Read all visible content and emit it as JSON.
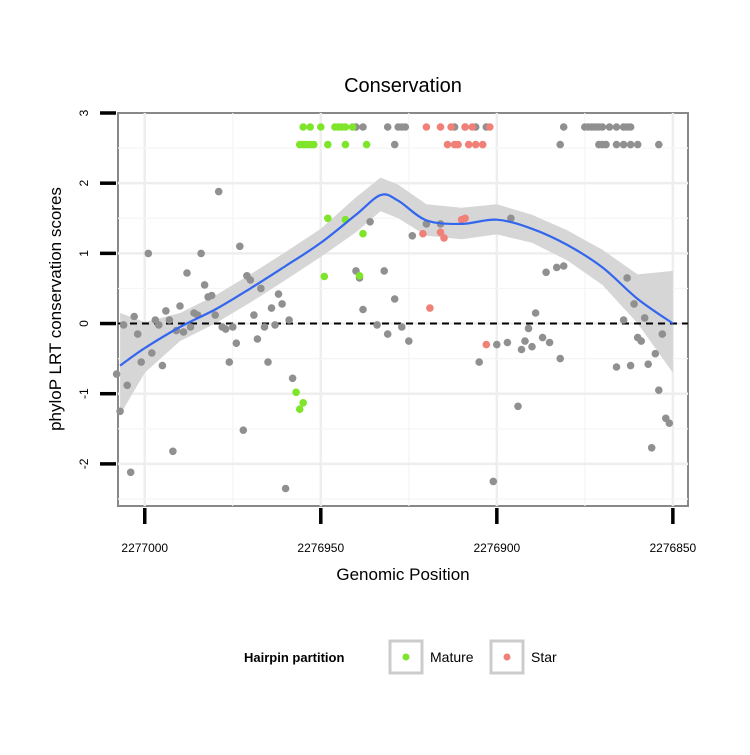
{
  "chart_data": {
    "type": "scatter",
    "title": "Conservation",
    "xlabel": "Genomic Position",
    "ylabel": "phyloP LRT conservation scores",
    "xlim": [
      2277007.6,
      2276845.7
    ],
    "ylim": [
      -2.6,
      3.0
    ],
    "x_ticks": [
      2277000,
      2276950,
      2276900,
      2276850
    ],
    "x_tick_labels": [
      "2277000",
      "2276950",
      "2276900",
      "2276850"
    ],
    "y_ticks": [
      -2,
      -1,
      0,
      1,
      2,
      3
    ],
    "y_tick_labels": [
      "-2",
      "-1",
      "0",
      "1",
      "2",
      "3"
    ],
    "grid": true,
    "reference_line": {
      "y": 0,
      "style": "dashed"
    },
    "legend": {
      "title": "Hairpin partition",
      "position": "bottom",
      "entries": [
        {
          "label": "Mature",
          "color": "#7ee52a"
        },
        {
          "label": "Star",
          "color": "#f08078"
        }
      ]
    },
    "colors": {
      "other": "#909090",
      "mature": "#7ee52a",
      "star": "#f08078",
      "smooth_line": "#3366ee",
      "ribbon": "#d6d6d6"
    },
    "series": [
      {
        "name": "Other",
        "points": [
          [
            2277008,
            -0.72
          ],
          [
            2277007,
            -1.25
          ],
          [
            2277006,
            -0.02
          ],
          [
            2277005,
            -0.88
          ],
          [
            2277004,
            -2.12
          ],
          [
            2277003,
            0.1
          ],
          [
            2277002,
            -0.15
          ],
          [
            2277001,
            -0.55
          ],
          [
            2276999,
            1.0
          ],
          [
            2276998,
            -0.42
          ],
          [
            2276997,
            0.05
          ],
          [
            2276996,
            -0.02
          ],
          [
            2276995,
            -0.6
          ],
          [
            2276994,
            0.18
          ],
          [
            2276993,
            0.05
          ],
          [
            2276992,
            -1.82
          ],
          [
            2276991,
            -0.1
          ],
          [
            2276990,
            0.25
          ],
          [
            2276989,
            -0.12
          ],
          [
            2276988,
            0.72
          ],
          [
            2276987,
            -0.05
          ],
          [
            2276986,
            0.15
          ],
          [
            2276985,
            0.12
          ],
          [
            2276984,
            1.0
          ],
          [
            2276983,
            0.55
          ],
          [
            2276982,
            0.38
          ],
          [
            2276981,
            0.4
          ],
          [
            2276980,
            0.12
          ],
          [
            2276979,
            1.88
          ],
          [
            2276978,
            -0.05
          ],
          [
            2276977,
            -0.08
          ],
          [
            2276976,
            -0.55
          ],
          [
            2276975,
            -0.05
          ],
          [
            2276974,
            -0.28
          ],
          [
            2276973,
            1.1
          ],
          [
            2276972,
            -1.52
          ],
          [
            2276971,
            0.68
          ],
          [
            2276970,
            0.62
          ],
          [
            2276969,
            0.12
          ],
          [
            2276968,
            -0.22
          ],
          [
            2276967,
            0.5
          ],
          [
            2276966,
            -0.05
          ],
          [
            2276965,
            -0.55
          ],
          [
            2276964,
            0.22
          ],
          [
            2276963,
            -0.02
          ],
          [
            2276962,
            0.42
          ],
          [
            2276961,
            0.28
          ],
          [
            2276960,
            -2.35
          ],
          [
            2276959,
            0.05
          ],
          [
            2276958,
            -0.78
          ],
          [
            2276940,
            0.75
          ],
          [
            2276939,
            0.65
          ],
          [
            2276938,
            0.2
          ],
          [
            2276936,
            1.45
          ],
          [
            2276934,
            -0.02
          ],
          [
            2276932,
            0.75
          ],
          [
            2276931,
            -0.15
          ],
          [
            2276929,
            0.35
          ],
          [
            2276927,
            -0.05
          ],
          [
            2276925,
            -0.25
          ],
          [
            2276924,
            1.25
          ],
          [
            2276920,
            1.42
          ],
          [
            2276916,
            1.42
          ],
          [
            2276905,
            -0.55
          ],
          [
            2276901,
            -2.25
          ],
          [
            2276900,
            -0.3
          ],
          [
            2276897,
            -0.27
          ],
          [
            2276896,
            1.5
          ],
          [
            2276894,
            -1.18
          ],
          [
            2276893,
            -0.37
          ],
          [
            2276892,
            -0.25
          ],
          [
            2276891,
            -0.07
          ],
          [
            2276890,
            -0.33
          ],
          [
            2276889,
            0.15
          ],
          [
            2276887,
            -0.2
          ],
          [
            2276886,
            0.73
          ],
          [
            2276885,
            -0.27
          ],
          [
            2276883,
            0.8
          ],
          [
            2276882,
            -0.5
          ],
          [
            2276881,
            0.82
          ],
          [
            2276866,
            -0.62
          ],
          [
            2276864,
            0.05
          ],
          [
            2276863,
            0.65
          ],
          [
            2276862,
            -0.6
          ],
          [
            2276861,
            0.28
          ],
          [
            2276860,
            -0.2
          ],
          [
            2276859,
            -0.25
          ],
          [
            2276858,
            0.08
          ],
          [
            2276857,
            -0.58
          ],
          [
            2276856,
            -1.77
          ],
          [
            2276855,
            -0.43
          ],
          [
            2276854,
            -0.95
          ],
          [
            2276853,
            -0.15
          ],
          [
            2276852,
            -1.35
          ],
          [
            2276851,
            -1.42
          ],
          [
            2276940,
            2.8
          ],
          [
            2276938,
            2.8
          ],
          [
            2276931,
            2.8
          ],
          [
            2276929,
            2.55
          ],
          [
            2276928,
            2.8
          ],
          [
            2276927,
            2.8
          ],
          [
            2276926,
            2.8
          ],
          [
            2276912,
            2.8
          ],
          [
            2276909,
            2.8
          ],
          [
            2276906,
            2.8
          ],
          [
            2276903,
            2.8
          ],
          [
            2276881,
            2.8
          ],
          [
            2276875,
            2.8
          ],
          [
            2276874,
            2.8
          ],
          [
            2276873,
            2.8
          ],
          [
            2276872,
            2.8
          ],
          [
            2276871,
            2.8
          ],
          [
            2276870,
            2.8
          ],
          [
            2276868,
            2.8
          ],
          [
            2276866,
            2.8
          ],
          [
            2276864,
            2.8
          ],
          [
            2276863,
            2.8
          ],
          [
            2276862,
            2.8
          ],
          [
            2276882,
            2.55
          ],
          [
            2276871,
            2.55
          ],
          [
            2276870,
            2.55
          ],
          [
            2276869,
            2.55
          ],
          [
            2276866,
            2.55
          ],
          [
            2276864,
            2.55
          ],
          [
            2276862,
            2.55
          ],
          [
            2276860,
            2.55
          ],
          [
            2276854,
            2.55
          ]
        ]
      },
      {
        "name": "Mature",
        "points": [
          [
            2276957,
            -0.98
          ],
          [
            2276956,
            -1.22
          ],
          [
            2276955,
            -1.13
          ],
          [
            2276949,
            0.67
          ],
          [
            2276948,
            1.5
          ],
          [
            2276943,
            1.48
          ],
          [
            2276939,
            0.68
          ],
          [
            2276938,
            1.28
          ],
          [
            2276955,
            2.8
          ],
          [
            2276953,
            2.8
          ],
          [
            2276950,
            2.8
          ],
          [
            2276946,
            2.8
          ],
          [
            2276945,
            2.8
          ],
          [
            2276944,
            2.8
          ],
          [
            2276943,
            2.8
          ],
          [
            2276941,
            2.8
          ],
          [
            2276956,
            2.55
          ],
          [
            2276955,
            2.55
          ],
          [
            2276954,
            2.55
          ],
          [
            2276953,
            2.55
          ],
          [
            2276952,
            2.55
          ],
          [
            2276948,
            2.55
          ],
          [
            2276943,
            2.55
          ],
          [
            2276937,
            2.55
          ]
        ]
      },
      {
        "name": "Star",
        "points": [
          [
            2276921,
            1.28
          ],
          [
            2276919,
            0.22
          ],
          [
            2276916,
            1.3
          ],
          [
            2276915,
            1.22
          ],
          [
            2276910,
            1.48
          ],
          [
            2276909,
            1.5
          ],
          [
            2276903,
            -0.3
          ],
          [
            2276920,
            2.8
          ],
          [
            2276916,
            2.8
          ],
          [
            2276913,
            2.8
          ],
          [
            2276909,
            2.8
          ],
          [
            2276907,
            2.8
          ],
          [
            2276902,
            2.8
          ],
          [
            2276914,
            2.55
          ],
          [
            2276912,
            2.55
          ],
          [
            2276911,
            2.55
          ],
          [
            2276908,
            2.55
          ],
          [
            2276906,
            2.55
          ],
          [
            2276904,
            2.55
          ]
        ]
      }
    ],
    "smooth": {
      "method": "loess",
      "x": [
        2277007,
        2277000,
        2276990,
        2276980,
        2276970,
        2276960,
        2276950,
        2276940,
        2276933,
        2276928,
        2276920,
        2276910,
        2276900,
        2276890,
        2276880,
        2276870,
        2276860,
        2276850
      ],
      "y": [
        -0.6,
        -0.35,
        -0.05,
        0.2,
        0.5,
        0.82,
        1.15,
        1.55,
        1.83,
        1.75,
        1.47,
        1.42,
        1.48,
        1.35,
        1.12,
        0.8,
        0.35,
        0.0
      ],
      "ci_low": [
        -1.3,
        -0.7,
        -0.25,
        0.0,
        0.3,
        0.62,
        0.95,
        1.3,
        1.6,
        1.5,
        1.25,
        1.2,
        1.27,
        1.15,
        0.9,
        0.55,
        0.0,
        -0.7
      ],
      "ci_high": [
        0.15,
        0.02,
        0.15,
        0.4,
        0.7,
        1.02,
        1.35,
        1.8,
        2.08,
        1.98,
        1.7,
        1.65,
        1.7,
        1.55,
        1.33,
        1.05,
        0.7,
        0.75
      ]
    }
  }
}
